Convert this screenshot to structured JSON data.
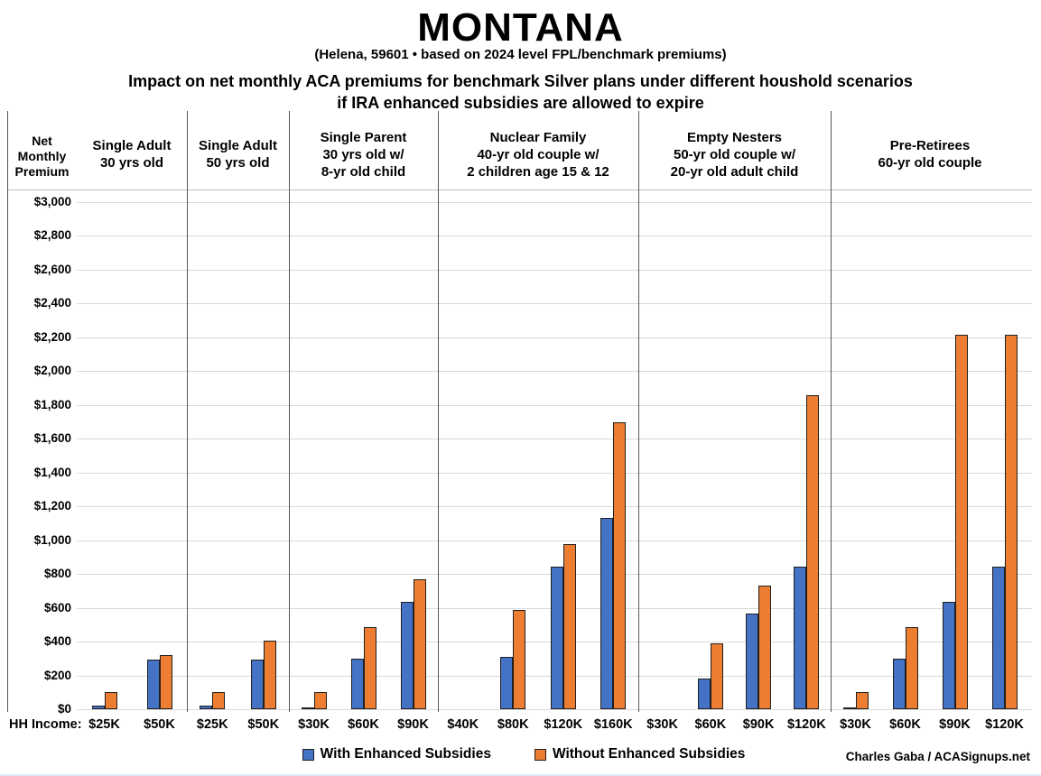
{
  "header": {
    "title": "MONTANA",
    "subtitle": "(Helena, 59601 • based on 2024 level FPL/benchmark premiums)",
    "description_line1": "Impact on net monthly ACA premiums for benchmark Silver plans under different houshold scenarios",
    "description_line2": "if IRA enhanced subsidies are allowed to expire"
  },
  "axis": {
    "y_label_lines": "Net\nMonthly\nPremium",
    "x_label": "HH Income:"
  },
  "legend": {
    "with": {
      "label": "With Enhanced Subsidies",
      "color": "#4472C4"
    },
    "without": {
      "label": "Without Enhanced Subsidies",
      "color": "#ED7D31"
    }
  },
  "credit": "Charles Gaba / ACASignups.net",
  "chart_data": {
    "type": "bar",
    "title": "Impact on net monthly ACA premiums for benchmark Silver plans under different houshold scenarios if IRA enhanced subsidies are allowed to expire",
    "ylabel": "Net Monthly Premium",
    "xlabel": "HH Income",
    "ylim": [
      0,
      3000
    ],
    "ytick_step": 200,
    "grid": true,
    "legend_position": "bottom",
    "series_names": [
      "With Enhanced Subsidies",
      "Without Enhanced Subsidies"
    ],
    "colors": {
      "with": "#4472C4",
      "without": "#ED7D31"
    },
    "groups": [
      {
        "label": "Single Adult\n30 yrs old",
        "incomes": [
          "$25K",
          "$50K"
        ],
        "with_enhanced": [
          20,
          295
        ],
        "without_enhanced": [
          100,
          320
        ]
      },
      {
        "label": "Single Adult\n50 yrs old",
        "incomes": [
          "$25K",
          "$50K"
        ],
        "with_enhanced": [
          20,
          295
        ],
        "without_enhanced": [
          100,
          405
        ]
      },
      {
        "label": "Single Parent\n30 yrs old w/\n8-yr old child",
        "incomes": [
          "$30K",
          "$60K",
          "$90K"
        ],
        "with_enhanced": [
          10,
          300,
          635
        ],
        "without_enhanced": [
          100,
          485,
          770
        ]
      },
      {
        "label": "Nuclear Family\n40-yr old couple w/\n2 children age 15 & 12",
        "incomes": [
          "$40K",
          "$80K",
          "$120K",
          "$160K"
        ],
        "with_enhanced": [
          0,
          310,
          845,
          1130
        ],
        "without_enhanced": [
          0,
          585,
          975,
          1695
        ]
      },
      {
        "label": "Empty Nesters\n50-yr old couple w/\n20-yr old adult child",
        "incomes": [
          "$30K",
          "$60K",
          "$90K",
          "$120K"
        ],
        "with_enhanced": [
          0,
          180,
          565,
          845
        ],
        "without_enhanced": [
          0,
          390,
          730,
          1855
        ]
      },
      {
        "label": "Pre-Retirees\n60-yr old couple",
        "incomes": [
          "$30K",
          "$60K",
          "$90K",
          "$120K"
        ],
        "with_enhanced": [
          10,
          300,
          635,
          845
        ],
        "without_enhanced": [
          100,
          485,
          2215,
          2215
        ]
      }
    ]
  }
}
